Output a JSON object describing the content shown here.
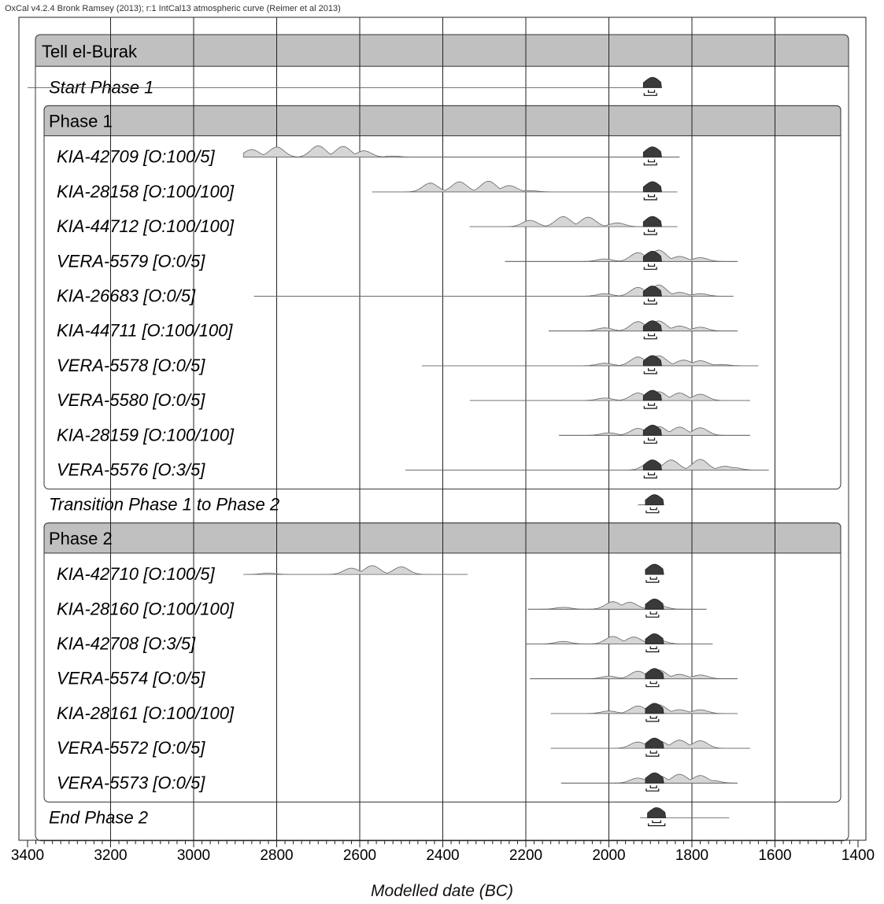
{
  "credit": "OxCal v4.2.4 Bronk Ramsey (2013); r:1 IntCal13 atmospheric curve (Reimer et al 2013)",
  "x_axis_label": "Modelled date (BC)",
  "chart_data": {
    "type": "oxcal-multiplot",
    "title": "",
    "xlabel": "Modelled date (BC)",
    "ylabel": "",
    "xlim": [
      3400,
      1400
    ],
    "x_reversed": true,
    "x_ticks": [
      3400,
      3200,
      3000,
      2800,
      2600,
      2400,
      2200,
      2000,
      1800,
      1600,
      1400
    ],
    "grid": true,
    "model": "Tell el-Burak",
    "rows": [
      {
        "kind": "model_header",
        "label": "Tell el-Burak"
      },
      {
        "kind": "boundary",
        "label": "Start Phase 1",
        "unmodelled": null,
        "modelled": {
          "peak": 1895,
          "start": 1910,
          "end": 1880
        },
        "range_68": [
          1905,
          1890
        ],
        "range_95": [
          1915,
          1885
        ]
      },
      {
        "kind": "phase_header",
        "label": "Phase 1"
      },
      {
        "kind": "date",
        "label": "KIA-42709 [O:100/5]",
        "unmodelled": {
          "start": 2880,
          "end": 1830,
          "peaks": [
            [
              2860,
              0.6
            ],
            [
              2800,
              0.8
            ],
            [
              2700,
              0.9
            ],
            [
              2640,
              0.85
            ],
            [
              2590,
              0.5
            ],
            [
              2520,
              0.08
            ]
          ]
        },
        "modelled": {
          "peak": 1895,
          "start": 1910,
          "end": 1880
        },
        "range_68": [
          1905,
          1890
        ],
        "range_95": [
          1915,
          1885
        ]
      },
      {
        "kind": "date",
        "label": "KIA-28158 [O:100/100]",
        "unmodelled": {
          "start": 2570,
          "end": 1835,
          "peaks": [
            [
              2430,
              0.7
            ],
            [
              2360,
              0.8
            ],
            [
              2290,
              0.85
            ],
            [
              2240,
              0.5
            ],
            [
              2190,
              0.1
            ]
          ]
        },
        "modelled": {
          "peak": 1895,
          "start": 1910,
          "end": 1880
        },
        "range_68": [
          1905,
          1890
        ],
        "range_95": [
          1915,
          1885
        ]
      },
      {
        "kind": "date",
        "label": "KIA-44712 [O:100/100]",
        "unmodelled": {
          "start": 2335,
          "end": 1835,
          "peaks": [
            [
              2190,
              0.5
            ],
            [
              2110,
              0.8
            ],
            [
              2050,
              0.75
            ],
            [
              1980,
              0.3
            ]
          ]
        },
        "modelled": {
          "peak": 1895,
          "start": 1910,
          "end": 1880
        },
        "range_68": [
          1905,
          1890
        ],
        "range_95": [
          1915,
          1885
        ]
      },
      {
        "kind": "date",
        "label": "VERA-5579 [O:0/5]",
        "unmodelled": {
          "start": 2250,
          "end": 1690,
          "peaks": [
            [
              2010,
              0.2
            ],
            [
              1930,
              0.7
            ],
            [
              1880,
              0.9
            ],
            [
              1830,
              0.4
            ],
            [
              1780,
              0.3
            ]
          ]
        },
        "modelled": {
          "peak": 1895,
          "start": 1910,
          "end": 1880
        },
        "range_68": [
          1905,
          1890
        ],
        "range_95": [
          1915,
          1885
        ]
      },
      {
        "kind": "date",
        "label": "KIA-26683 [O:0/5]",
        "unmodelled": {
          "start": 2855,
          "end": 1700,
          "peaks": [
            [
              2010,
              0.2
            ],
            [
              1930,
              0.7
            ],
            [
              1880,
              0.9
            ],
            [
              1830,
              0.3
            ],
            [
              1780,
              0.2
            ]
          ]
        },
        "modelled": {
          "peak": 1895,
          "start": 1910,
          "end": 1880
        },
        "range_68": [
          1905,
          1890
        ],
        "range_95": [
          1915,
          1885
        ]
      },
      {
        "kind": "date",
        "label": "KIA-44711 [O:100/100]",
        "unmodelled": {
          "start": 2145,
          "end": 1690,
          "peaks": [
            [
              2010,
              0.25
            ],
            [
              1930,
              0.75
            ],
            [
              1880,
              0.8
            ],
            [
              1830,
              0.4
            ],
            [
              1780,
              0.3
            ]
          ]
        },
        "modelled": {
          "peak": 1895,
          "start": 1910,
          "end": 1880
        },
        "range_68": [
          1905,
          1890
        ],
        "range_95": [
          1915,
          1885
        ]
      },
      {
        "kind": "date",
        "label": "VERA-5578 [O:0/5]",
        "unmodelled": {
          "start": 2450,
          "end": 1640,
          "peaks": [
            [
              2010,
              0.2
            ],
            [
              1930,
              0.7
            ],
            [
              1880,
              0.8
            ],
            [
              1820,
              0.45
            ],
            [
              1780,
              0.4
            ],
            [
              1730,
              0.1
            ]
          ]
        },
        "modelled": {
          "peak": 1895,
          "start": 1910,
          "end": 1880
        },
        "range_68": [
          1905,
          1890
        ],
        "range_95": [
          1915,
          1885
        ]
      },
      {
        "kind": "date",
        "label": "VERA-5580 [O:0/5]",
        "unmodelled": {
          "start": 2335,
          "end": 1660,
          "peaks": [
            [
              2010,
              0.2
            ],
            [
              1930,
              0.6
            ],
            [
              1880,
              0.7
            ],
            [
              1830,
              0.6
            ],
            [
              1780,
              0.5
            ]
          ]
        },
        "modelled": {
          "peak": 1895,
          "start": 1910,
          "end": 1880
        },
        "range_68": [
          1905,
          1890
        ],
        "range_95": [
          1915,
          1885
        ]
      },
      {
        "kind": "date",
        "label": "KIA-28159 [O:100/100]",
        "unmodelled": {
          "start": 2120,
          "end": 1660,
          "peaks": [
            [
              2000,
              0.2
            ],
            [
              1930,
              0.55
            ],
            [
              1880,
              0.7
            ],
            [
              1830,
              0.65
            ],
            [
              1780,
              0.6
            ]
          ]
        },
        "modelled": {
          "peak": 1895,
          "start": 1910,
          "end": 1880
        },
        "range_68": [
          1905,
          1890
        ],
        "range_95": [
          1915,
          1885
        ]
      },
      {
        "kind": "date",
        "label": "VERA-5576 [O:3/5]",
        "unmodelled": {
          "start": 2490,
          "end": 1615,
          "peaks": [
            [
              1900,
              0.6
            ],
            [
              1850,
              0.8
            ],
            [
              1780,
              0.85
            ],
            [
              1720,
              0.3
            ],
            [
              1700,
              0.2
            ]
          ]
        },
        "modelled": {
          "peak": 1895,
          "start": 1910,
          "end": 1880
        },
        "range_68": [
          1905,
          1890
        ],
        "range_95": [
          1915,
          1885
        ]
      },
      {
        "kind": "boundary",
        "label": "Transition Phase 1 to Phase 2",
        "unmodelled": null,
        "modelled": {
          "peak": 1890,
          "start": 1905,
          "end": 1875
        },
        "range_68": [
          1900,
          1885
        ],
        "range_95": [
          1910,
          1880
        ]
      },
      {
        "kind": "phase_header",
        "label": "Phase 2"
      },
      {
        "kind": "date",
        "label": "KIA-42710 [O:100/5]",
        "unmodelled": {
          "start": 2880,
          "end": 2340,
          "peaks": [
            [
              2820,
              0.1
            ],
            [
              2620,
              0.5
            ],
            [
              2570,
              0.7
            ],
            [
              2500,
              0.6
            ]
          ]
        },
        "modelled": {
          "peak": 1890,
          "start": 1905,
          "end": 1875
        },
        "range_68": [
          1900,
          1885
        ],
        "range_95": [
          1910,
          1880
        ]
      },
      {
        "kind": "date",
        "label": "KIA-28160 [O:100/100]",
        "unmodelled": {
          "start": 2195,
          "end": 1765,
          "peaks": [
            [
              2110,
              0.15
            ],
            [
              1990,
              0.6
            ],
            [
              1950,
              0.55
            ],
            [
              1880,
              0.3
            ]
          ]
        },
        "modelled": {
          "peak": 1890,
          "start": 1905,
          "end": 1875
        },
        "range_68": [
          1900,
          1885
        ],
        "range_95": [
          1910,
          1880
        ]
      },
      {
        "kind": "date",
        "label": "KIA-42708 [O:3/5]",
        "unmodelled": {
          "start": 2200,
          "end": 1750,
          "peaks": [
            [
              2110,
              0.2
            ],
            [
              1990,
              0.6
            ],
            [
              1940,
              0.55
            ],
            [
              1880,
              0.3
            ]
          ]
        },
        "modelled": {
          "peak": 1890,
          "start": 1905,
          "end": 1875
        },
        "range_68": [
          1900,
          1885
        ],
        "range_95": [
          1910,
          1880
        ]
      },
      {
        "kind": "date",
        "label": "VERA-5574 [O:0/5]",
        "unmodelled": {
          "start": 2190,
          "end": 1690,
          "peaks": [
            [
              2000,
              0.2
            ],
            [
              1930,
              0.6
            ],
            [
              1880,
              0.7
            ],
            [
              1830,
              0.35
            ],
            [
              1780,
              0.3
            ]
          ]
        },
        "modelled": {
          "peak": 1890,
          "start": 1905,
          "end": 1875
        },
        "range_68": [
          1900,
          1885
        ],
        "range_95": [
          1910,
          1880
        ]
      },
      {
        "kind": "date",
        "label": "KIA-28161 [O:100/100]",
        "unmodelled": {
          "start": 2140,
          "end": 1690,
          "peaks": [
            [
              2000,
              0.2
            ],
            [
              1930,
              0.6
            ],
            [
              1880,
              0.7
            ],
            [
              1830,
              0.3
            ],
            [
              1780,
              0.3
            ]
          ]
        },
        "modelled": {
          "peak": 1890,
          "start": 1905,
          "end": 1875
        },
        "range_68": [
          1900,
          1885
        ],
        "range_95": [
          1910,
          1880
        ]
      },
      {
        "kind": "date",
        "label": "VERA-5572 [O:0/5]",
        "unmodelled": {
          "start": 2140,
          "end": 1660,
          "peaks": [
            [
              1930,
              0.5
            ],
            [
              1880,
              0.6
            ],
            [
              1830,
              0.65
            ],
            [
              1780,
              0.6
            ]
          ]
        },
        "modelled": {
          "peak": 1890,
          "start": 1905,
          "end": 1875
        },
        "range_68": [
          1900,
          1885
        ],
        "range_95": [
          1910,
          1880
        ]
      },
      {
        "kind": "date",
        "label": "VERA-5573 [O:0/5]",
        "unmodelled": {
          "start": 2115,
          "end": 1690,
          "peaks": [
            [
              1930,
              0.4
            ],
            [
              1880,
              0.6
            ],
            [
              1830,
              0.7
            ],
            [
              1780,
              0.6
            ],
            [
              1750,
              0.2
            ]
          ]
        },
        "modelled": {
          "peak": 1890,
          "start": 1905,
          "end": 1875
        },
        "range_68": [
          1900,
          1885
        ],
        "range_95": [
          1910,
          1880
        ]
      },
      {
        "kind": "boundary",
        "label": "End Phase 2",
        "unmodelled": null,
        "modelled": {
          "peak": 1885,
          "start": 1900,
          "end": 1710
        },
        "range_68": [
          1895,
          1875
        ],
        "range_95": [
          1905,
          1865
        ]
      }
    ]
  }
}
